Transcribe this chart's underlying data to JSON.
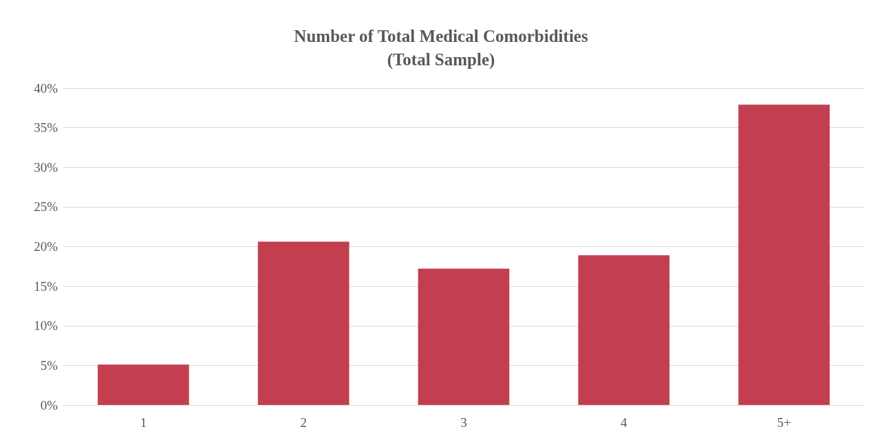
{
  "chart_data": {
    "type": "bar",
    "title": "Number of Total Medical Comorbidities\n(Total Sample)",
    "categories": [
      "1",
      "2",
      "3",
      "4",
      "5+"
    ],
    "values": [
      5.1,
      20.6,
      17.2,
      18.9,
      37.9
    ],
    "color": "#c33f50",
    "ylim": [
      0,
      40
    ],
    "yticks": [
      {
        "value": 0,
        "label": "0%"
      },
      {
        "value": 5,
        "label": "5%"
      },
      {
        "value": 10,
        "label": "10%"
      },
      {
        "value": 15,
        "label": "15%"
      },
      {
        "value": 20,
        "label": "20%"
      },
      {
        "value": 25,
        "label": "25%"
      },
      {
        "value": 30,
        "label": "30%"
      },
      {
        "value": 35,
        "label": "35%"
      },
      {
        "value": 40,
        "label": "40%"
      }
    ],
    "grid": true
  }
}
